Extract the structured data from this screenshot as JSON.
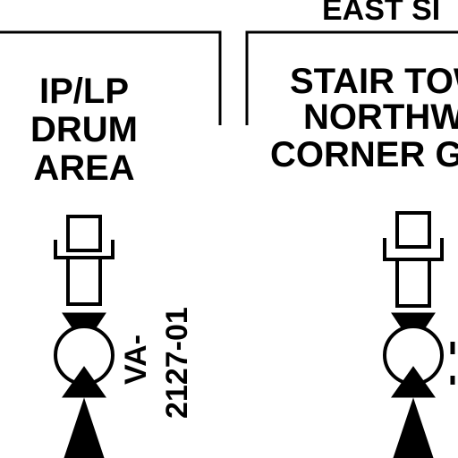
{
  "header": {
    "area_label": "EAST SI"
  },
  "panels": [
    {
      "title_lines": [
        "IP/LP",
        "DRUM",
        "AREA"
      ]
    },
    {
      "title_lines": [
        "STAIR TOW",
        "NORTHW",
        "CORNER G"
      ]
    }
  ],
  "valves": [
    {
      "tag_line1": "VA-",
      "tag_line2": "2127-01"
    },
    {
      "tag_partial": ""
    }
  ]
}
